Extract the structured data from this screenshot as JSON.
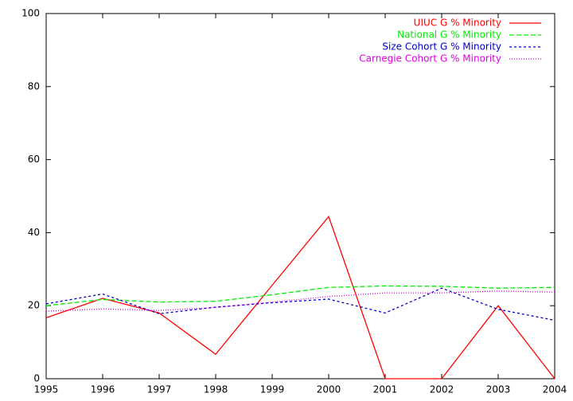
{
  "chart_data": {
    "type": "line",
    "x": [
      1995,
      1996,
      1997,
      1998,
      1999,
      2000,
      2001,
      2002,
      2003,
      2004
    ],
    "series": [
      {
        "name": "UIUC G % Minority",
        "color": "#ff0000",
        "values": [
          16.7,
          22,
          18,
          6.7,
          25.6,
          44.4,
          0,
          0,
          20,
          0
        ]
      },
      {
        "name": "National G % Minority",
        "color": "#00ee00",
        "values": [
          20,
          21.7,
          21,
          21.2,
          23,
          25,
          25.4,
          25.3,
          24.8,
          25
        ]
      },
      {
        "name": "Size Cohort G % Minority",
        "color": "#0000cc",
        "values": [
          20.5,
          23.2,
          17.8,
          19.6,
          20.8,
          21.8,
          18,
          24.8,
          19,
          16
        ]
      },
      {
        "name": "Carnegie Cohort G % Minority",
        "color": "#dd00dd",
        "values": [
          18.5,
          19.1,
          18.7,
          19.5,
          21,
          22.5,
          23.5,
          23.5,
          24,
          23.7
        ]
      }
    ],
    "xlim": [
      1995,
      2004
    ],
    "xticks": [
      1995,
      1996,
      1997,
      1998,
      1999,
      2000,
      2001,
      2002,
      2003,
      2004
    ],
    "ylim": [
      0,
      100
    ],
    "yticks": [
      0,
      20,
      40,
      60,
      80,
      100
    ],
    "legend": "top-right"
  }
}
